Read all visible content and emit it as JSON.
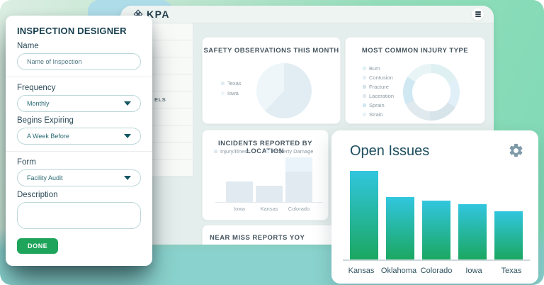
{
  "header": {
    "logo_text": "KPA",
    "menu_icon": "hamburger"
  },
  "inspection_designer": {
    "title": "INSPECTION DESIGNER",
    "name_label": "Name",
    "name_placeholder": "Name of Inspection",
    "frequency_label": "Frequency",
    "frequency_value": "Monthly",
    "begins_expiring_label": "Begins Expiring",
    "begins_expiring_value": "A Week Before",
    "form_label": "Form",
    "form_value": "Facility Audit",
    "description_label": "Description",
    "description_value": "",
    "done_label": "DONE"
  },
  "sidebar": {
    "visible_row_label": "ELS"
  },
  "dashboard": {
    "near_miss_title": "NEAR MISS REPORTS YOY"
  },
  "open_issues_card": {
    "settings_icon": "gear"
  },
  "chart_data": {
    "safety_observations": {
      "type": "pie",
      "title": "SAFETY OBSERVATIONS THIS MONTH",
      "categories": [
        "Texas",
        "Iowa"
      ],
      "values": [
        62,
        38
      ],
      "colors": [
        "#e2edf3",
        "#eef6f9"
      ],
      "legend_position": "left",
      "note": "slice sizes estimated from angles; no numeric labels shown"
    },
    "injury_type": {
      "type": "pie",
      "subtype": "donut",
      "title": "MOST COMMON INJURY TYPE",
      "categories": [
        "Burn",
        "Contusion",
        "Fracture",
        "Laceration",
        "Sprain",
        "Strain"
      ],
      "values": [
        17,
        17,
        17,
        17,
        16,
        16
      ],
      "colors": [
        "#dff0f2",
        "#e1eff8",
        "#d7e4ea",
        "#e0e9ed",
        "#cfe8f1",
        "#e8f4f5"
      ],
      "legend_position": "left",
      "note": "approximately equal segments; no numeric labels shown"
    },
    "incidents_by_location": {
      "type": "bar",
      "stacked": true,
      "title": "INCIDENTS REPORTED BY LOCATION",
      "categories": [
        "Iowa",
        "Kansas",
        "Colorado"
      ],
      "series": [
        {
          "name": "Injury/Illness",
          "color": "#e0eaf0",
          "values": [
            29,
            23,
            43
          ]
        },
        {
          "name": "Property Damage",
          "color": "#eaf3f9",
          "values": [
            0,
            0,
            20
          ]
        }
      ],
      "legend_position": "top-left",
      "note": "relative heights (px); axis has no tick labels"
    },
    "open_issues": {
      "type": "bar",
      "title": "Open Issues",
      "categories": [
        "Kansas",
        "Oklahoma",
        "Colorado",
        "Iowa",
        "Texas"
      ],
      "values": [
        125,
        88,
        83,
        78,
        68
      ],
      "bar_gradient": [
        "#31c6df",
        "#1ba761"
      ],
      "note": "relative heights (px); axis has no tick labels"
    }
  }
}
